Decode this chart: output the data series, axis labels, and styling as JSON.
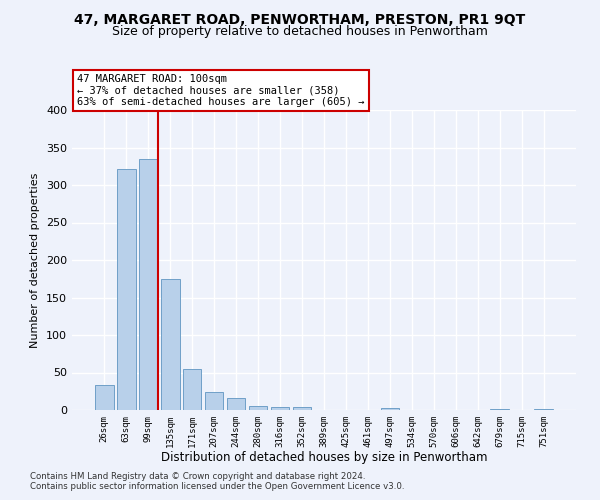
{
  "title": "47, MARGARET ROAD, PENWORTHAM, PRESTON, PR1 9QT",
  "subtitle": "Size of property relative to detached houses in Penwortham",
  "xlabel": "Distribution of detached houses by size in Penwortham",
  "ylabel": "Number of detached properties",
  "categories": [
    "26sqm",
    "63sqm",
    "99sqm",
    "135sqm",
    "171sqm",
    "207sqm",
    "244sqm",
    "280sqm",
    "316sqm",
    "352sqm",
    "389sqm",
    "425sqm",
    "461sqm",
    "497sqm",
    "534sqm",
    "570sqm",
    "606sqm",
    "642sqm",
    "679sqm",
    "715sqm",
    "751sqm"
  ],
  "values": [
    33,
    322,
    335,
    175,
    55,
    24,
    16,
    5,
    4,
    4,
    0,
    0,
    0,
    3,
    0,
    0,
    0,
    0,
    2,
    0,
    1
  ],
  "bar_color": "#b8d0ea",
  "bar_edge_color": "#6fa0c8",
  "property_line_index": 2,
  "property_line_color": "#cc0000",
  "annotation_text": "47 MARGARET ROAD: 100sqm\n← 37% of detached houses are smaller (358)\n63% of semi-detached houses are larger (605) →",
  "annotation_box_color": "#ffffff",
  "annotation_box_edge": "#cc0000",
  "footnote1": "Contains HM Land Registry data © Crown copyright and database right 2024.",
  "footnote2": "Contains public sector information licensed under the Open Government Licence v3.0.",
  "ylim": [
    0,
    400
  ],
  "background_color": "#eef2fb",
  "grid_color": "#ffffff",
  "title_fontsize": 10,
  "subtitle_fontsize": 9
}
